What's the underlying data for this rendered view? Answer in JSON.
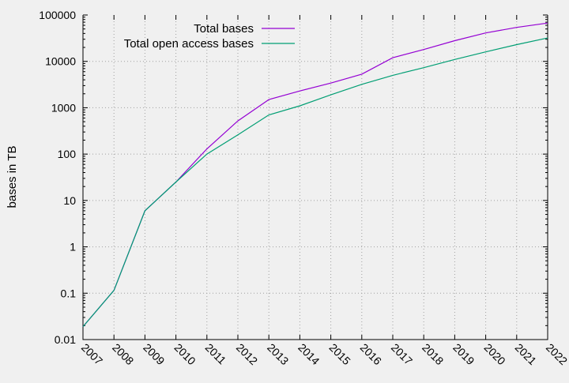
{
  "chart_data": {
    "type": "line",
    "title": "",
    "xlabel": "",
    "ylabel": "bases in TB",
    "yscale": "log",
    "ylim": [
      0.01,
      100000
    ],
    "xlim": [
      2007,
      2022
    ],
    "grid": true,
    "legend_placement": "top-center",
    "x": [
      2007,
      2008,
      2009,
      2010,
      2011,
      2012,
      2013,
      2014,
      2015,
      2016,
      2017,
      2018,
      2019,
      2020,
      2021,
      2022
    ],
    "x_tick_labels": [
      "2007",
      "2008",
      "2009",
      "2010",
      "2011",
      "2012",
      "2013",
      "2014",
      "2015",
      "2016",
      "2017",
      "2018",
      "2019",
      "2020",
      "2021",
      "2022"
    ],
    "y_ticks": [
      0.01,
      0.1,
      1,
      10,
      100,
      1000,
      10000,
      100000
    ],
    "y_tick_labels": [
      "0.01",
      "0.1",
      "1",
      "10",
      "100",
      "1000",
      "10000",
      "100000"
    ],
    "series": [
      {
        "name": "Total bases",
        "color": "#9400d3",
        "values": [
          0.019,
          0.115,
          6,
          25,
          130,
          520,
          1500,
          2300,
          3400,
          5300,
          12000,
          18000,
          28000,
          41000,
          54000,
          67000
        ]
      },
      {
        "name": "Total open access bases",
        "color": "#009e73",
        "values": [
          0.019,
          0.115,
          6,
          25,
          100,
          260,
          700,
          1100,
          1900,
          3200,
          5000,
          7300,
          11000,
          16000,
          23000,
          32000
        ]
      }
    ]
  }
}
